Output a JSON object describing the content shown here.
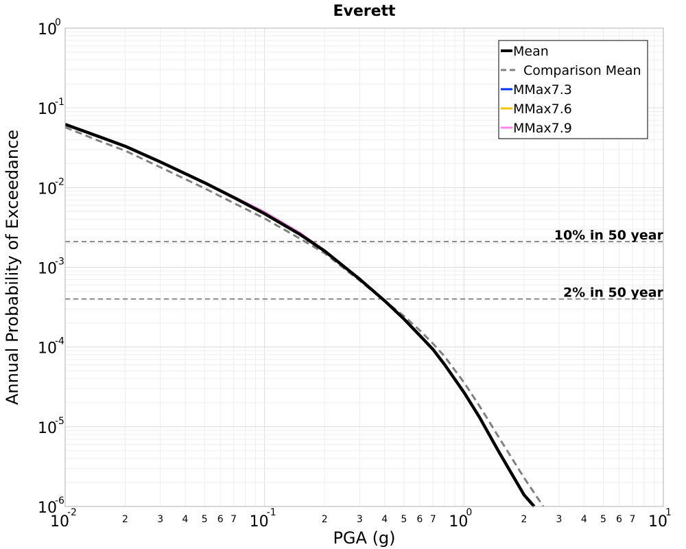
{
  "chart_data": {
    "type": "line",
    "title": "Everett",
    "xlabel": "PGA (g)",
    "ylabel": "Annual Probability of Exceedance",
    "x_scale": "log",
    "y_scale": "log",
    "xlim": [
      0.01,
      10
    ],
    "ylim": [
      1e-06,
      1
    ],
    "grid": true,
    "legend_position": "top-right",
    "x_major_ticks": [
      {
        "value": 0.01,
        "base": "10",
        "exp": "-2"
      },
      {
        "value": 0.1,
        "base": "10",
        "exp": "-1"
      },
      {
        "value": 1,
        "base": "10",
        "exp": "0"
      },
      {
        "value": 10,
        "base": "10",
        "exp": "1"
      }
    ],
    "y_major_ticks": [
      {
        "value": 1,
        "base": "10",
        "exp": "0"
      },
      {
        "value": 0.1,
        "base": "10",
        "exp": "-1"
      },
      {
        "value": 0.01,
        "base": "10",
        "exp": "-2"
      },
      {
        "value": 0.001,
        "base": "10",
        "exp": "-3"
      },
      {
        "value": 0.0001,
        "base": "10",
        "exp": "-4"
      },
      {
        "value": 1e-05,
        "base": "10",
        "exp": "-5"
      },
      {
        "value": 1e-06,
        "base": "10",
        "exp": "-6"
      }
    ],
    "x_minor_tick_labels": [
      "2",
      "3",
      "4",
      "5",
      "6",
      "7"
    ],
    "series": [
      {
        "name": "Mean",
        "color": "#000000",
        "dash": "solid",
        "x": [
          0.01,
          0.015,
          0.02,
          0.03,
          0.05,
          0.07,
          0.1,
          0.15,
          0.2,
          0.3,
          0.4,
          0.5,
          0.6,
          0.7,
          0.8,
          1.0,
          1.2,
          1.5,
          2.0,
          2.25
        ],
        "y": [
          0.062,
          0.043,
          0.033,
          0.021,
          0.0115,
          0.0075,
          0.0047,
          0.0026,
          0.0016,
          0.00071,
          0.00038,
          0.000225,
          0.00014,
          9.3e-05,
          6e-05,
          2.7e-05,
          1.3e-05,
          4.8e-06,
          1.4e-06,
          1e-06
        ]
      },
      {
        "name": "Comparison Mean",
        "color": "#808080",
        "dash": "dashed",
        "x": [
          0.01,
          0.015,
          0.02,
          0.03,
          0.05,
          0.07,
          0.1,
          0.15,
          0.2,
          0.3,
          0.4,
          0.5,
          0.6,
          0.7,
          0.8,
          1.0,
          1.2,
          1.5,
          2.0,
          2.5
        ],
        "y": [
          0.057,
          0.038,
          0.029,
          0.018,
          0.0098,
          0.0064,
          0.0041,
          0.0023,
          0.0015,
          0.00068,
          0.00038,
          0.000245,
          0.000162,
          0.00011,
          7.6e-05,
          3.6e-05,
          1.8e-05,
          7.3e-06,
          2.3e-06,
          1e-06
        ]
      },
      {
        "name": "MMax7.3",
        "color": "#0033ee",
        "dash": "solid",
        "x": [
          0.05,
          0.07,
          0.1,
          0.15,
          0.2,
          0.3
        ],
        "y": [
          0.0116,
          0.0076,
          0.0048,
          0.0027,
          0.0016,
          0.00072
        ]
      },
      {
        "name": "MMax7.6",
        "color": "#f2c300",
        "dash": "solid",
        "x": [
          0.05,
          0.07,
          0.1,
          0.15,
          0.2,
          0.3
        ],
        "y": [
          0.0117,
          0.0077,
          0.0049,
          0.00272,
          0.00162,
          0.00072
        ]
      },
      {
        "name": "MMax7.9",
        "color": "#ff88e6",
        "dash": "solid",
        "x": [
          0.05,
          0.07,
          0.1,
          0.15,
          0.2,
          0.3
        ],
        "y": [
          0.0118,
          0.0078,
          0.005,
          0.00275,
          0.00165,
          0.00073
        ]
      }
    ],
    "reference_lines": [
      {
        "label": "10% in 50 year",
        "y": 0.0021
      },
      {
        "label": "2% in 50 year",
        "y": 0.0004
      }
    ]
  }
}
